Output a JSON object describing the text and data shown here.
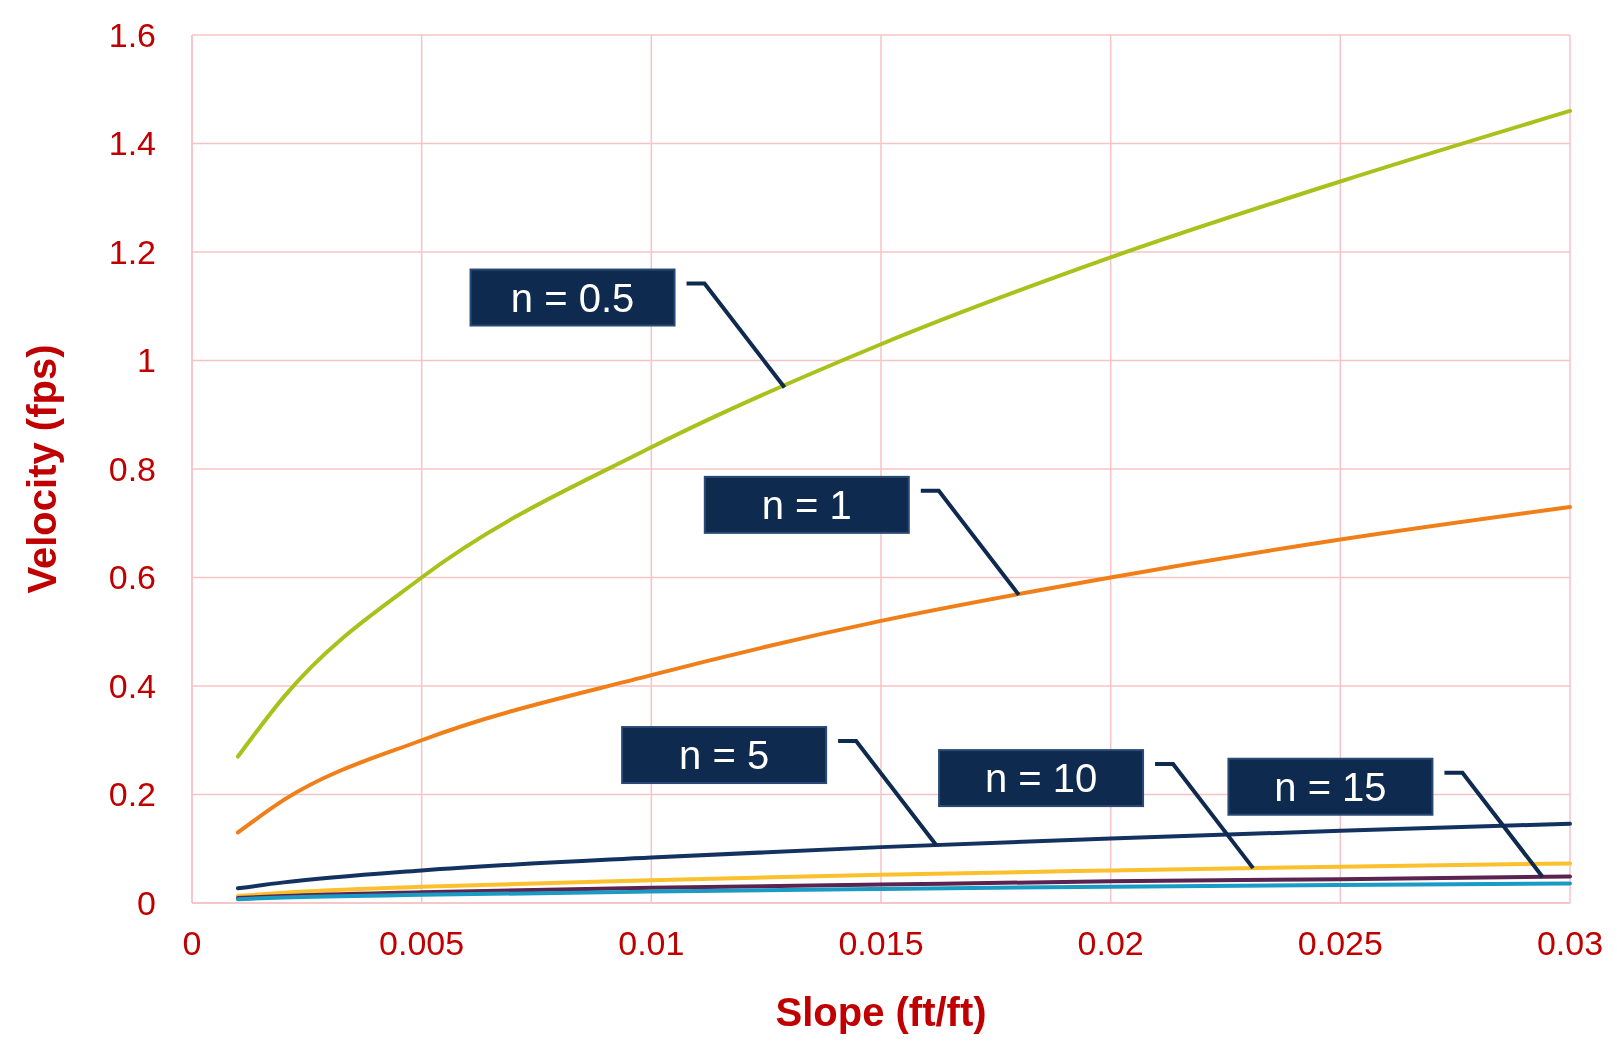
{
  "chart_data": {
    "type": "line",
    "xlabel": "Slope (ft/ft)",
    "ylabel": "Velocity (fps)",
    "x": [
      0.001,
      0.002,
      0.005,
      0.01,
      0.015,
      0.02,
      0.025,
      0.03
    ],
    "series": [
      {
        "color": "#a9c11b",
        "values": [
          0.27,
          0.38,
          0.6,
          0.84,
          1.03,
          1.19,
          1.33,
          1.46
        ]
      },
      {
        "color": "#f07f19",
        "values": [
          0.13,
          0.19,
          0.3,
          0.42,
          0.52,
          0.6,
          0.67,
          0.73
        ]
      },
      {
        "color": "#13325f",
        "values": [
          0.027,
          0.038,
          0.06,
          0.084,
          0.103,
          0.119,
          0.133,
          0.146
        ]
      },
      {
        "color": "#fbc02d",
        "values": [
          0.013,
          0.019,
          0.03,
          0.042,
          0.052,
          0.06,
          0.067,
          0.073
        ]
      },
      {
        "color": "#5b2350",
        "values": [
          0.009,
          0.013,
          0.02,
          0.028,
          0.034,
          0.04,
          0.044,
          0.049
        ]
      },
      {
        "color": "#1a9bc4",
        "values": [
          0.007,
          0.01,
          0.015,
          0.021,
          0.026,
          0.03,
          0.033,
          0.036
        ]
      }
    ],
    "xlim": [
      0,
      0.03
    ],
    "xticks": [
      0,
      0.005,
      0.01,
      0.015,
      0.02,
      0.025,
      0.03
    ],
    "ylim": [
      0,
      1.6
    ],
    "yticks": [
      0,
      0.2,
      0.4,
      0.6,
      0.8,
      1,
      1.2,
      1.4,
      1.6
    ],
    "grid": true,
    "marker": "none",
    "line_style": "solid",
    "annotations": [
      "n = 0.5",
      "n = 1",
      "n = 5",
      "n = 10",
      "n = 15"
    ]
  }
}
